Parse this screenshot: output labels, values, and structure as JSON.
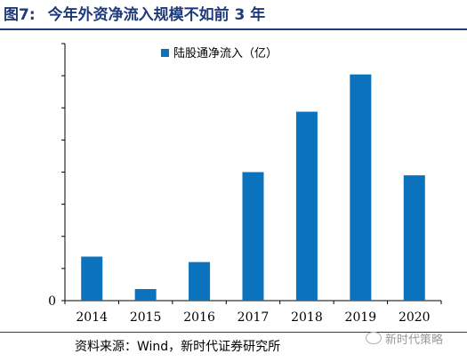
{
  "figure": {
    "number": "图7:",
    "title": "今年外资净流入规模不如前 3 年",
    "source": "资料来源：Wind，新时代证券研究所",
    "watermark": "新时代策略"
  },
  "chart_data": {
    "type": "bar",
    "categories": [
      "2014",
      "2015",
      "2016",
      "2017",
      "2018",
      "2019",
      "2020"
    ],
    "series": [
      {
        "name": "陆股通净流入（亿）",
        "values": [
          685,
          180,
          600,
          2000,
          2940,
          3520,
          1950
        ]
      }
    ],
    "ylim": [
      0,
      4000
    ],
    "yticks": [
      0,
      500,
      1000,
      1500,
      2000,
      2500,
      3000,
      3500,
      4000
    ],
    "ytick_labels": [
      "0",
      "",
      "",
      "",
      "",
      "",
      "",
      "",
      ""
    ],
    "xlabel": "",
    "ylabel": "",
    "grid": false,
    "legend_position": "top-center",
    "colors": {
      "bar": "#0b72bd",
      "axis": "#000000",
      "title": "#1f3a7a"
    }
  }
}
